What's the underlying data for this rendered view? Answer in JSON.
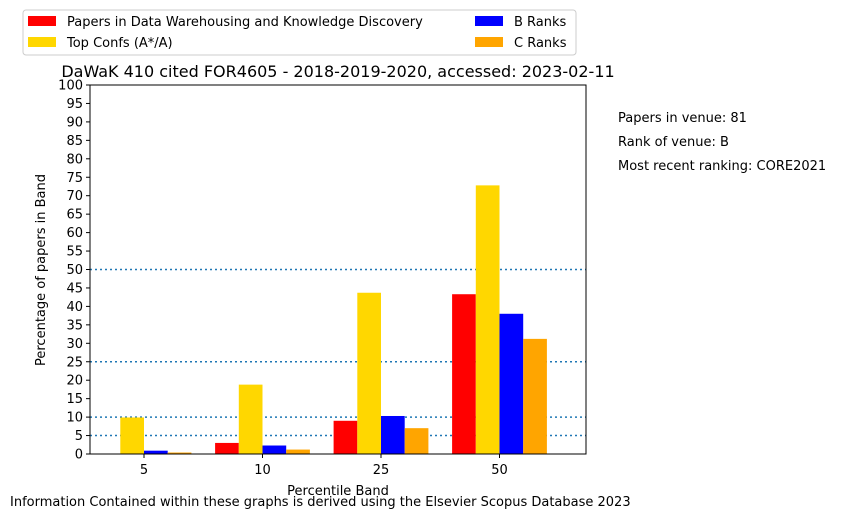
{
  "chart_data": {
    "type": "bar",
    "title": "DaWaK 410 cited FOR4605 - 2018-2019-2020, accessed: 2023-02-11",
    "xlabel": "Percentile Band",
    "ylabel": "Percentage of papers in Band",
    "categories": [
      "5",
      "10",
      "25",
      "50"
    ],
    "ylim": [
      0,
      100
    ],
    "yticks": [
      0,
      5,
      10,
      15,
      20,
      25,
      30,
      35,
      40,
      45,
      50,
      55,
      60,
      65,
      70,
      75,
      80,
      85,
      90,
      95,
      100
    ],
    "reference_lines": [
      5,
      10,
      25,
      50
    ],
    "grid": false,
    "legend_position": "top-left, outside plot, 2 columns",
    "series": [
      {
        "name": "Papers in Data Warehousing and Knowledge Discovery",
        "color": "#ff0000",
        "values": [
          0,
          3,
          9,
          43.3
        ]
      },
      {
        "name": "Top Confs (A*/A)",
        "color": "#ffd700",
        "values": [
          9.9,
          18.8,
          43.7,
          72.8
        ]
      },
      {
        "name": "B Ranks",
        "color": "#0000ff",
        "values": [
          0.9,
          2.3,
          10.3,
          38
        ]
      },
      {
        "name": "C Ranks",
        "color": "#ffa500",
        "values": [
          0.4,
          1.2,
          7,
          31.2
        ]
      }
    ]
  },
  "side_info": {
    "papers_in_venue": "Papers in venue: 81",
    "rank_of_venue": "Rank of venue: B",
    "most_recent_ranking": "Most recent ranking: CORE2021"
  },
  "footer": "Information Contained within these graphs is derived using the Elsevier Scopus Database 2023"
}
